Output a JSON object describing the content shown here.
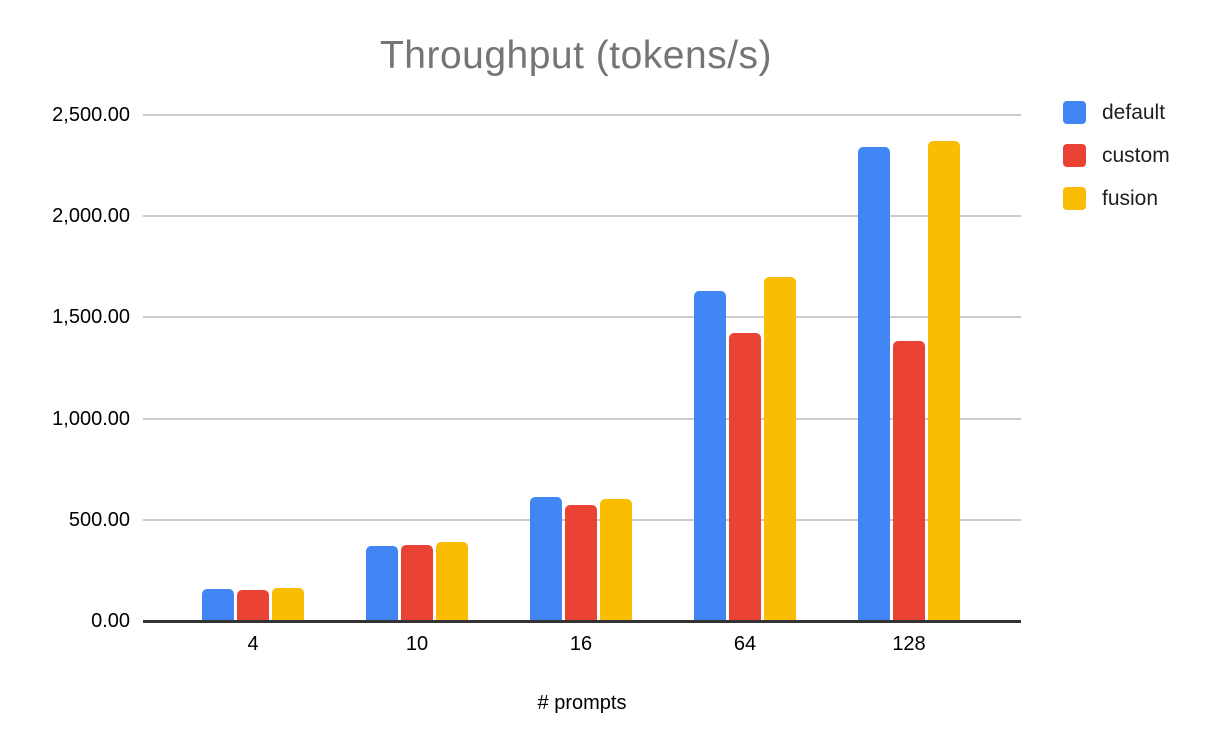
{
  "title": "Throughput (tokens/s)",
  "chart_data": {
    "type": "bar",
    "title": "Throughput (tokens/s)",
    "xlabel": "# prompts",
    "ylabel": "",
    "categories": [
      "4",
      "10",
      "16",
      "64",
      "128"
    ],
    "series": [
      {
        "name": "default",
        "color": "#4285F4",
        "values": [
          158,
          370,
          611,
          1632,
          2342
        ]
      },
      {
        "name": "custom",
        "color": "#EA4335",
        "values": [
          153,
          375,
          572,
          1425,
          1381
        ]
      },
      {
        "name": "fusion",
        "color": "#FBBC04",
        "values": [
          164,
          390,
          601,
          1701,
          2371
        ]
      }
    ],
    "ylim": [
      0,
      2500
    ],
    "ytick_interval": 500,
    "ytick_labels": [
      "0.00",
      "500.00",
      "1,000.00",
      "1,500.00",
      "2,000.00",
      "2,500.00"
    ],
    "grid": "horizontal",
    "legend_position": "right"
  },
  "colors": {
    "background": "#ffffff",
    "title_text": "#757575",
    "axis_text": "#000000",
    "legend_text": "#1f1f1f",
    "gridline": "#cccccc",
    "axis_line": "#333333"
  }
}
